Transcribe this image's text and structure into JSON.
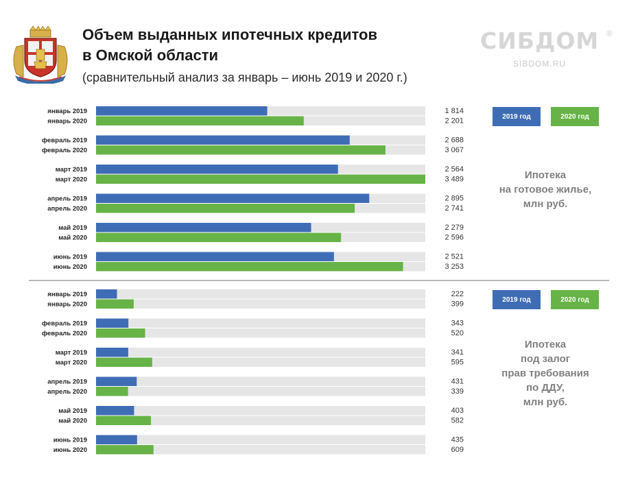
{
  "title_line1": "Объем выданных ипотечных  кредитов",
  "title_line2": "в Омской области",
  "subtitle": "(сравнительный анализ за январь – июнь 2019 и 2020 г.)",
  "brand": {
    "name": "СИБДОМ",
    "reg": "®",
    "url": "SIBDOM.RU"
  },
  "colors": {
    "y2019": "#3f6db5",
    "y2020": "#67b347",
    "track": "#e6e6e6"
  },
  "legend": {
    "y2019": "2019 год",
    "y2020": "2020 год"
  },
  "chart_data": [
    {
      "type": "bar",
      "title": "Ипотека на готовое жилье, млн руб.",
      "title_lines": [
        "Ипотека",
        "на готовое жилье,",
        "млн руб."
      ],
      "max": 3489,
      "rows": [
        {
          "label": "январь 2019",
          "value": 1814,
          "value_label": "1 814",
          "series": "2019 год"
        },
        {
          "label": "январь 2020",
          "value": 2201,
          "value_label": "2 201",
          "series": "2020 год"
        },
        {
          "label": "февраль 2019",
          "value": 2688,
          "value_label": "2 688",
          "series": "2019 год"
        },
        {
          "label": "февраль 2020",
          "value": 3067,
          "value_label": "3 067",
          "series": "2020 год"
        },
        {
          "label": "март 2019",
          "value": 2564,
          "value_label": "2 564",
          "series": "2019 год"
        },
        {
          "label": "март 2020",
          "value": 3489,
          "value_label": "3 489",
          "series": "2020 год"
        },
        {
          "label": "апрель 2019",
          "value": 2895,
          "value_label": "2 895",
          "series": "2019 год"
        },
        {
          "label": "апрель 2020",
          "value": 2741,
          "value_label": "2 741",
          "series": "2020 год"
        },
        {
          "label": "май 2019",
          "value": 2279,
          "value_label": "2 279",
          "series": "2019 год"
        },
        {
          "label": "май 2020",
          "value": 2596,
          "value_label": "2 596",
          "series": "2020 год"
        },
        {
          "label": "июнь 2019",
          "value": 2521,
          "value_label": "2 521",
          "series": "2019 год"
        },
        {
          "label": "июнь 2020",
          "value": 3253,
          "value_label": "3 253",
          "series": "2020 год"
        }
      ]
    },
    {
      "type": "bar",
      "title": "Ипотека под залог прав требования по ДДУ, млн руб.",
      "title_lines": [
        "Ипотека",
        "под залог",
        "прав требования",
        "по ДДУ,",
        "млн руб."
      ],
      "max": 3489,
      "rows": [
        {
          "label": "январь 2019",
          "value": 222,
          "value_label": "222",
          "series": "2019 год"
        },
        {
          "label": "январь 2020",
          "value": 399,
          "value_label": "399",
          "series": "2020 год"
        },
        {
          "label": "февраль 2019",
          "value": 343,
          "value_label": "343",
          "series": "2019 год"
        },
        {
          "label": "февраль 2020",
          "value": 520,
          "value_label": "520",
          "series": "2020 год"
        },
        {
          "label": "март 2019",
          "value": 341,
          "value_label": "341",
          "series": "2019 год"
        },
        {
          "label": "март 2020",
          "value": 595,
          "value_label": "595",
          "series": "2020 год"
        },
        {
          "label": "апрель 2019",
          "value": 431,
          "value_label": "431",
          "series": "2019 год"
        },
        {
          "label": "апрель 2020",
          "value": 339,
          "value_label": "339",
          "series": "2020 год"
        },
        {
          "label": "май 2019",
          "value": 403,
          "value_label": "403",
          "series": "2019 год"
        },
        {
          "label": "май 2020",
          "value": 582,
          "value_label": "582",
          "series": "2020 год"
        },
        {
          "label": "июнь 2019",
          "value": 435,
          "value_label": "435",
          "series": "2019 год"
        },
        {
          "label": "июнь 2020",
          "value": 609,
          "value_label": "609",
          "series": "2020 год"
        }
      ]
    }
  ]
}
